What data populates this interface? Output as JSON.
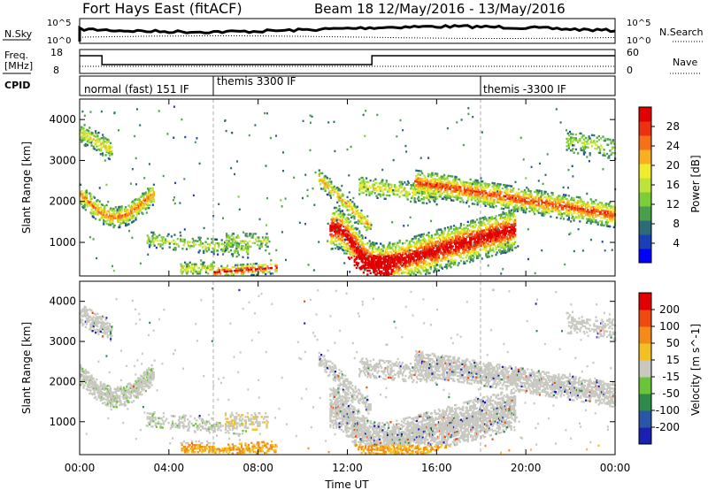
{
  "header": {
    "title": "Fort Hays East (fitACF)",
    "beam_info": "Beam 18 12/May/2016 - 13/May/2016"
  },
  "strips": {
    "nsky_label": "N.Sky",
    "nsky_ticks": [
      "10^5",
      "10^0"
    ],
    "nsearch_label": "N.Search",
    "nsearch_ticks": [
      "10^5",
      "10^0"
    ],
    "freq_label_1": "Freq.",
    "freq_label_2": "[MHz]",
    "freq_ticks": [
      "18",
      "8"
    ],
    "nave_label": "Nave",
    "nave_ticks": [
      "60",
      "0"
    ],
    "cpid_label": "CPID",
    "cpid_segments": [
      "normal (fast) 151 IF",
      "themis 3300 IF",
      "themis -3300 IF"
    ]
  },
  "chart_data": [
    {
      "type": "heatmap",
      "name": "power-panel",
      "ylabel": "Slant Range [km]",
      "xlabel": "",
      "xlim": [
        "00:00",
        "00:00"
      ],
      "ylim": [
        180,
        4500
      ],
      "yticks": [
        "1000",
        "2000",
        "3000",
        "4000"
      ],
      "colorbar": {
        "label": "Power [dB]",
        "ticks": [
          "28",
          "24",
          "20",
          "16",
          "12",
          "8",
          "4"
        ],
        "colors": [
          "#0000ff",
          "#1b3fb4",
          "#2e6b78",
          "#4aa04a",
          "#7ccd3a",
          "#bde23a",
          "#f2ea2c",
          "#f8b020",
          "#f57018",
          "#ec3012",
          "#e00000"
        ]
      }
    },
    {
      "type": "heatmap",
      "name": "velocity-panel",
      "ylabel": "Slant Range [km]",
      "xlabel": "Time UT",
      "xticks": [
        "00:00",
        "04:00",
        "08:00",
        "12:00",
        "16:00",
        "20:00",
        "00:00"
      ],
      "ylim": [
        180,
        4500
      ],
      "yticks": [
        "1000",
        "2000",
        "3000",
        "4000"
      ],
      "colorbar": {
        "label": "Velocity [m s^-1]",
        "ticks": [
          "200",
          "100",
          "50",
          "15",
          "-15",
          "-50",
          "-100",
          "-200"
        ],
        "colors": [
          "#1a20b0",
          "#2a56a8",
          "#2f8a4a",
          "#6ac43a",
          "#c8c8c0",
          "#f2c020",
          "#f48a18",
          "#ee4a10",
          "#e00000"
        ]
      }
    }
  ]
}
